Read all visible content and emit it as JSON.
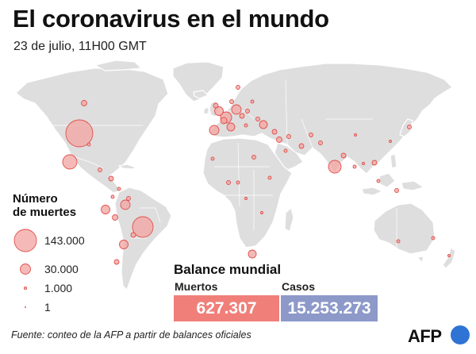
{
  "header": {
    "title": "El coronavirus en el mundo",
    "subtitle": "23 de julio, 11H00 GMT"
  },
  "legend": {
    "title_line1": "Número",
    "title_line2": "de muertes",
    "items": [
      "143.000",
      "30.000",
      "1.000",
      "1"
    ]
  },
  "balance": {
    "title": "Balance mundial",
    "deaths_label": "Muertos",
    "deaths_value": "627.307",
    "cases_label": "Casos",
    "cases_value": "15.253.273"
  },
  "footer": {
    "source": "Fuente: conteo de la AFP a partir de balances oficiales"
  },
  "logo": {
    "text": "AFP"
  },
  "colors": {
    "bubble_fill": "#f2a6a4",
    "bubble_stroke": "#e0504b",
    "land": "#dedede",
    "deaths_box": "#f07f7a",
    "cases_box": "#8d99c9",
    "afp_blue": "#2f73d4"
  }
}
